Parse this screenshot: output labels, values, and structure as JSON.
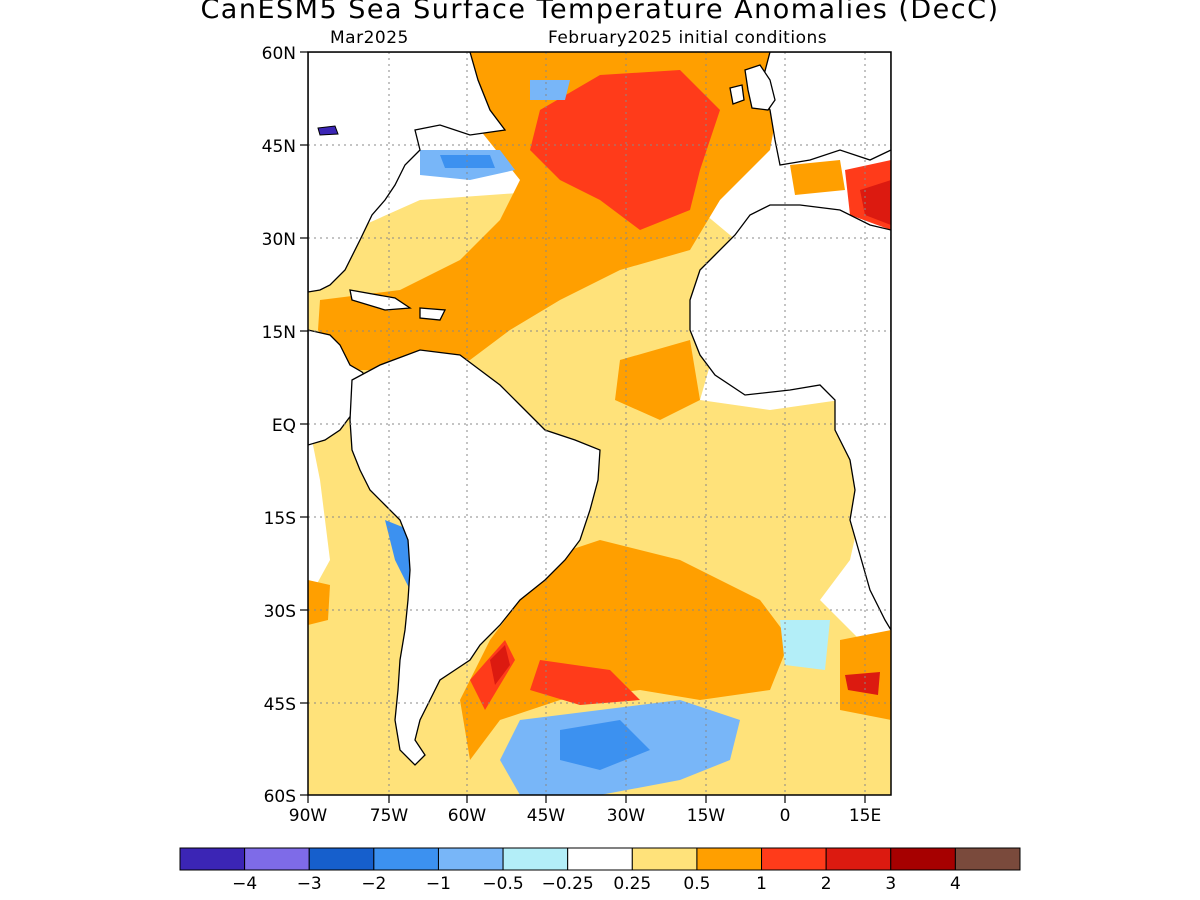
{
  "title": "CanESM5 Sea Surface Temperature Anomalies (DecC)",
  "subtitle_left": "Mar2025",
  "subtitle_right": "February2025 initial conditions",
  "map": {
    "lon_range": [
      -90,
      20
    ],
    "lat_range": [
      -60,
      60
    ],
    "lat_labels": [
      "60N",
      "45N",
      "30N",
      "15N",
      "EQ",
      "15S",
      "30S",
      "45S",
      "60S"
    ],
    "lat_values": [
      60,
      45,
      30,
      15,
      0,
      -15,
      -30,
      -45,
      -60
    ],
    "lon_labels": [
      "90W",
      "75W",
      "60W",
      "45W",
      "30W",
      "15W",
      "0",
      "15E"
    ],
    "lon_values": [
      -90,
      -75,
      -60,
      -45,
      -30,
      -15,
      0,
      15
    ],
    "grid": "dotted"
  },
  "colorbar": {
    "colors": [
      "#3b25b5",
      "#7e6be8",
      "#165fcc",
      "#3c91f0",
      "#78b6f8",
      "#b3eef8",
      "#ffffff",
      "#ffe27a",
      "#ff9f00",
      "#ff3b1a",
      "#dc1a10",
      "#a60000",
      "#7a4a3c"
    ],
    "labels": [
      "−4",
      "−3",
      "−2",
      "−1",
      "−0.5",
      "−0.25",
      "0.25",
      "0.5",
      "1",
      "2",
      "3",
      "4"
    ]
  }
}
